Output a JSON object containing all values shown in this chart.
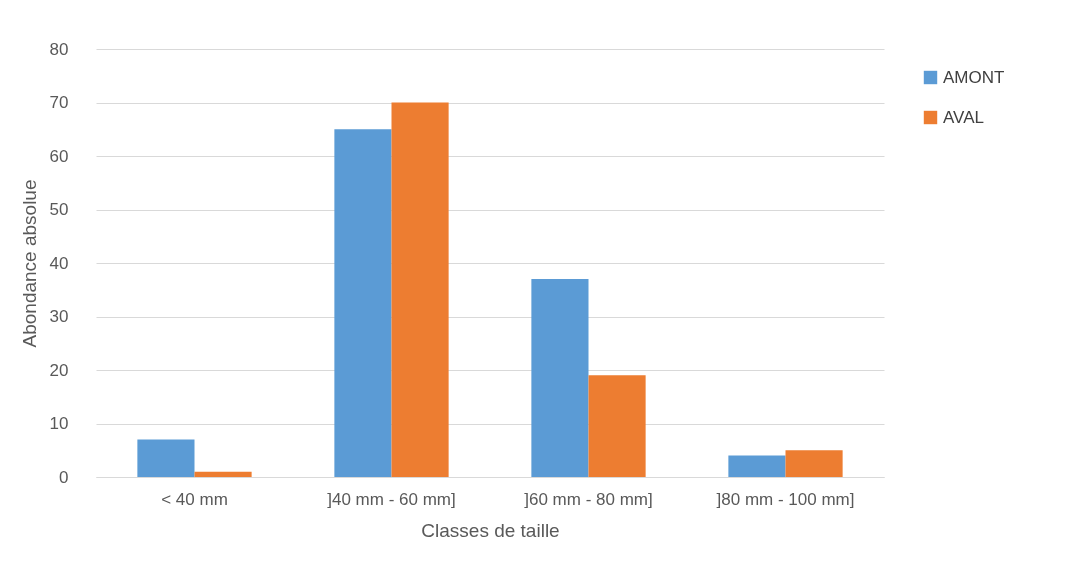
{
  "chart_data": {
    "type": "bar",
    "xlabel": "Classes de taille",
    "ylabel": "Abondance absolue",
    "categories": [
      "< 40 mm",
      "]40 mm - 60 mm]",
      "]60 mm - 80 mm]",
      "]80 mm - 100 mm]"
    ],
    "series": [
      {
        "name": "AMONT",
        "color": "#5b9bd5",
        "values": [
          7,
          65,
          37,
          4
        ]
      },
      {
        "name": "AVAL",
        "color": "#ed7d31",
        "values": [
          1,
          70,
          19,
          5
        ]
      }
    ],
    "ylim": [
      0,
      80
    ],
    "yticks": [
      0,
      10,
      20,
      30,
      40,
      50,
      60,
      70,
      80
    ],
    "grid": "y",
    "legend": "right"
  }
}
